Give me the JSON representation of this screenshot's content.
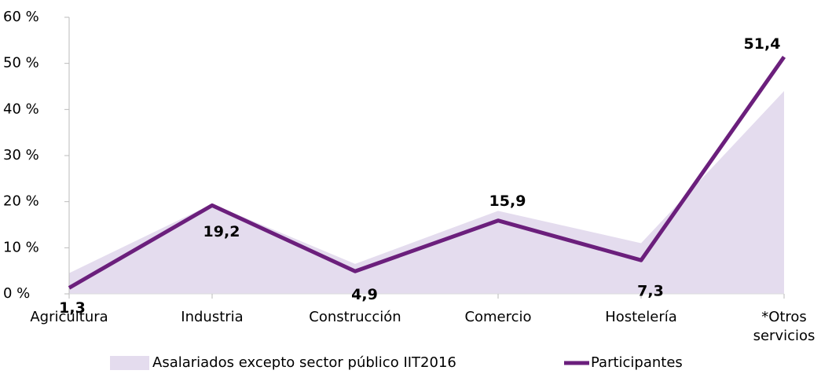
{
  "chart_data": {
    "type": "line",
    "categories": [
      "Agricultura",
      "Industria",
      "Construcción",
      "Comercio",
      "Hostelería",
      "*Otros servicios"
    ],
    "series": [
      {
        "name": "Asalariados excepto sector público IIT2016",
        "kind": "area",
        "color": "#e4dcee",
        "values": [
          4.5,
          19.5,
          6.5,
          18,
          11,
          44
        ]
      },
      {
        "name": "Participantes",
        "kind": "line",
        "color": "#6b1f7c",
        "values": [
          1.3,
          19.2,
          4.9,
          15.9,
          7.3,
          51.4
        ],
        "value_labels": [
          "1,3",
          "19,2",
          "4,9",
          "15,9",
          "7,3",
          "51,4"
        ]
      }
    ],
    "ylim": [
      0,
      60
    ],
    "yticks": [
      {
        "value": 0,
        "label": "0 %"
      },
      {
        "value": 10,
        "label": "10 %"
      },
      {
        "value": 20,
        "label": "20 %"
      },
      {
        "value": 30,
        "label": "30 %"
      },
      {
        "value": 40,
        "label": "40 %"
      },
      {
        "value": 50,
        "label": "50 %"
      },
      {
        "value": 60,
        "label": "60 %"
      }
    ],
    "legend": "bottom"
  }
}
